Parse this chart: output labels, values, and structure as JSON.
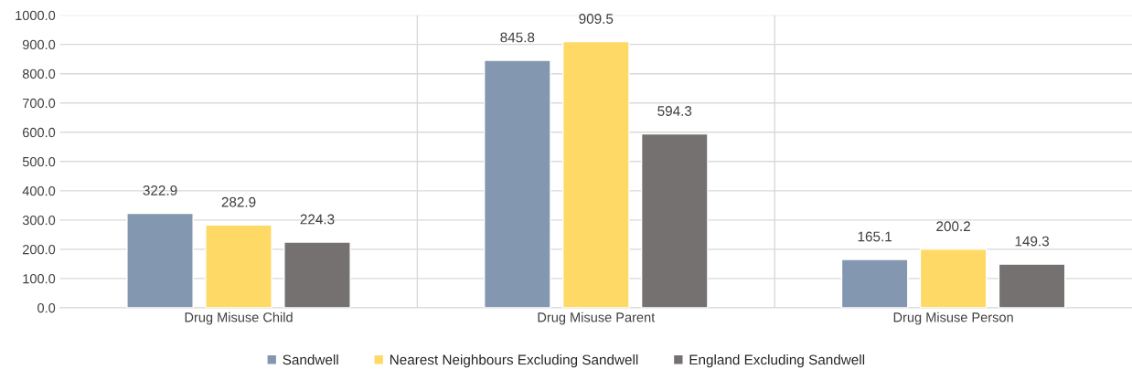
{
  "chart_data": {
    "type": "bar",
    "categories": [
      "Drug Misuse Child",
      "Drug Misuse Parent",
      "Drug Misuse Person"
    ],
    "series": [
      {
        "name": "Sandwell",
        "color": "#8497b0",
        "values": [
          322.9,
          845.8,
          165.1
        ]
      },
      {
        "name": "Nearest Neighbours Excluding Sandwell",
        "color": "#ffd966",
        "values": [
          282.9,
          909.5,
          200.2
        ]
      },
      {
        "name": "England Excluding Sandwell",
        "color": "#757171",
        "values": [
          224.3,
          594.3,
          149.3
        ]
      }
    ],
    "ylim": [
      0,
      1000
    ],
    "yticks": [
      {
        "value": 0,
        "label": "0.0"
      },
      {
        "value": 100,
        "label": "100.0"
      },
      {
        "value": 200,
        "label": "200.0"
      },
      {
        "value": 300,
        "label": "300.0"
      },
      {
        "value": 400,
        "label": "400.0"
      },
      {
        "value": 500,
        "label": "500.0"
      },
      {
        "value": 600,
        "label": "600.0"
      },
      {
        "value": 700,
        "label": "700.0"
      },
      {
        "value": 800,
        "label": "800.0"
      },
      {
        "value": 900,
        "label": "900.0"
      },
      {
        "value": 1000,
        "label": "1000.0"
      }
    ],
    "grid": true,
    "legend": "bottom",
    "data_labels": true
  }
}
